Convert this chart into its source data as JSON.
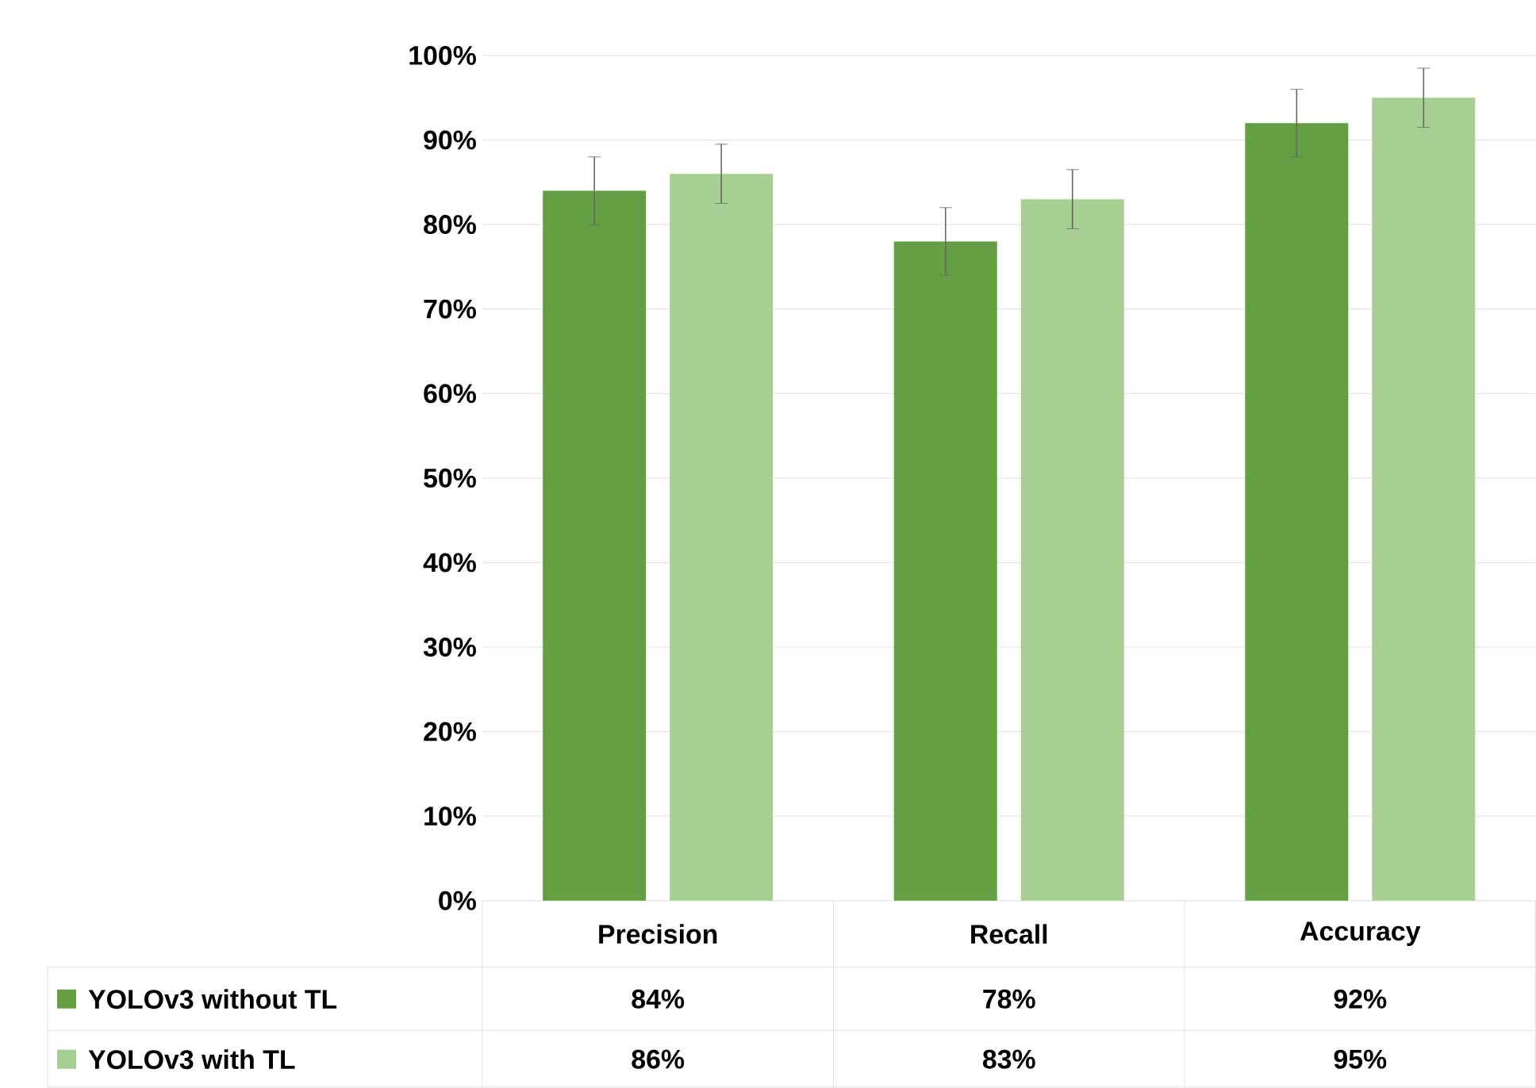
{
  "chart_data": {
    "type": "bar",
    "categories": [
      "Precision",
      "Recall",
      "Accuracy"
    ],
    "series": [
      {
        "name": "YOLOv3 without TL",
        "color": "#64a043",
        "values": [
          84,
          78,
          92
        ],
        "errors": [
          4,
          4,
          4
        ],
        "value_labels": [
          "84%",
          "78%",
          "92%"
        ]
      },
      {
        "name": "YOLOv3 with TL",
        "color": "#a8cf93",
        "values": [
          86,
          83,
          95
        ],
        "errors": [
          3.5,
          3.5,
          3.5
        ],
        "value_labels": [
          "86%",
          "83%",
          "95%"
        ]
      }
    ],
    "ylim": [
      0,
      100
    ],
    "yticks": [
      {
        "value": 0,
        "label": "0%"
      },
      {
        "value": 10,
        "label": "10%"
      },
      {
        "value": 20,
        "label": "20%"
      },
      {
        "value": 30,
        "label": "30%"
      },
      {
        "value": 40,
        "label": "40%"
      },
      {
        "value": 50,
        "label": "50%"
      },
      {
        "value": 60,
        "label": "60%"
      },
      {
        "value": 70,
        "label": "70%"
      },
      {
        "value": 80,
        "label": "80%"
      },
      {
        "value": 90,
        "label": "90%"
      },
      {
        "value": 100,
        "label": "100%"
      }
    ],
    "grid": "y",
    "legend": "bottom"
  }
}
